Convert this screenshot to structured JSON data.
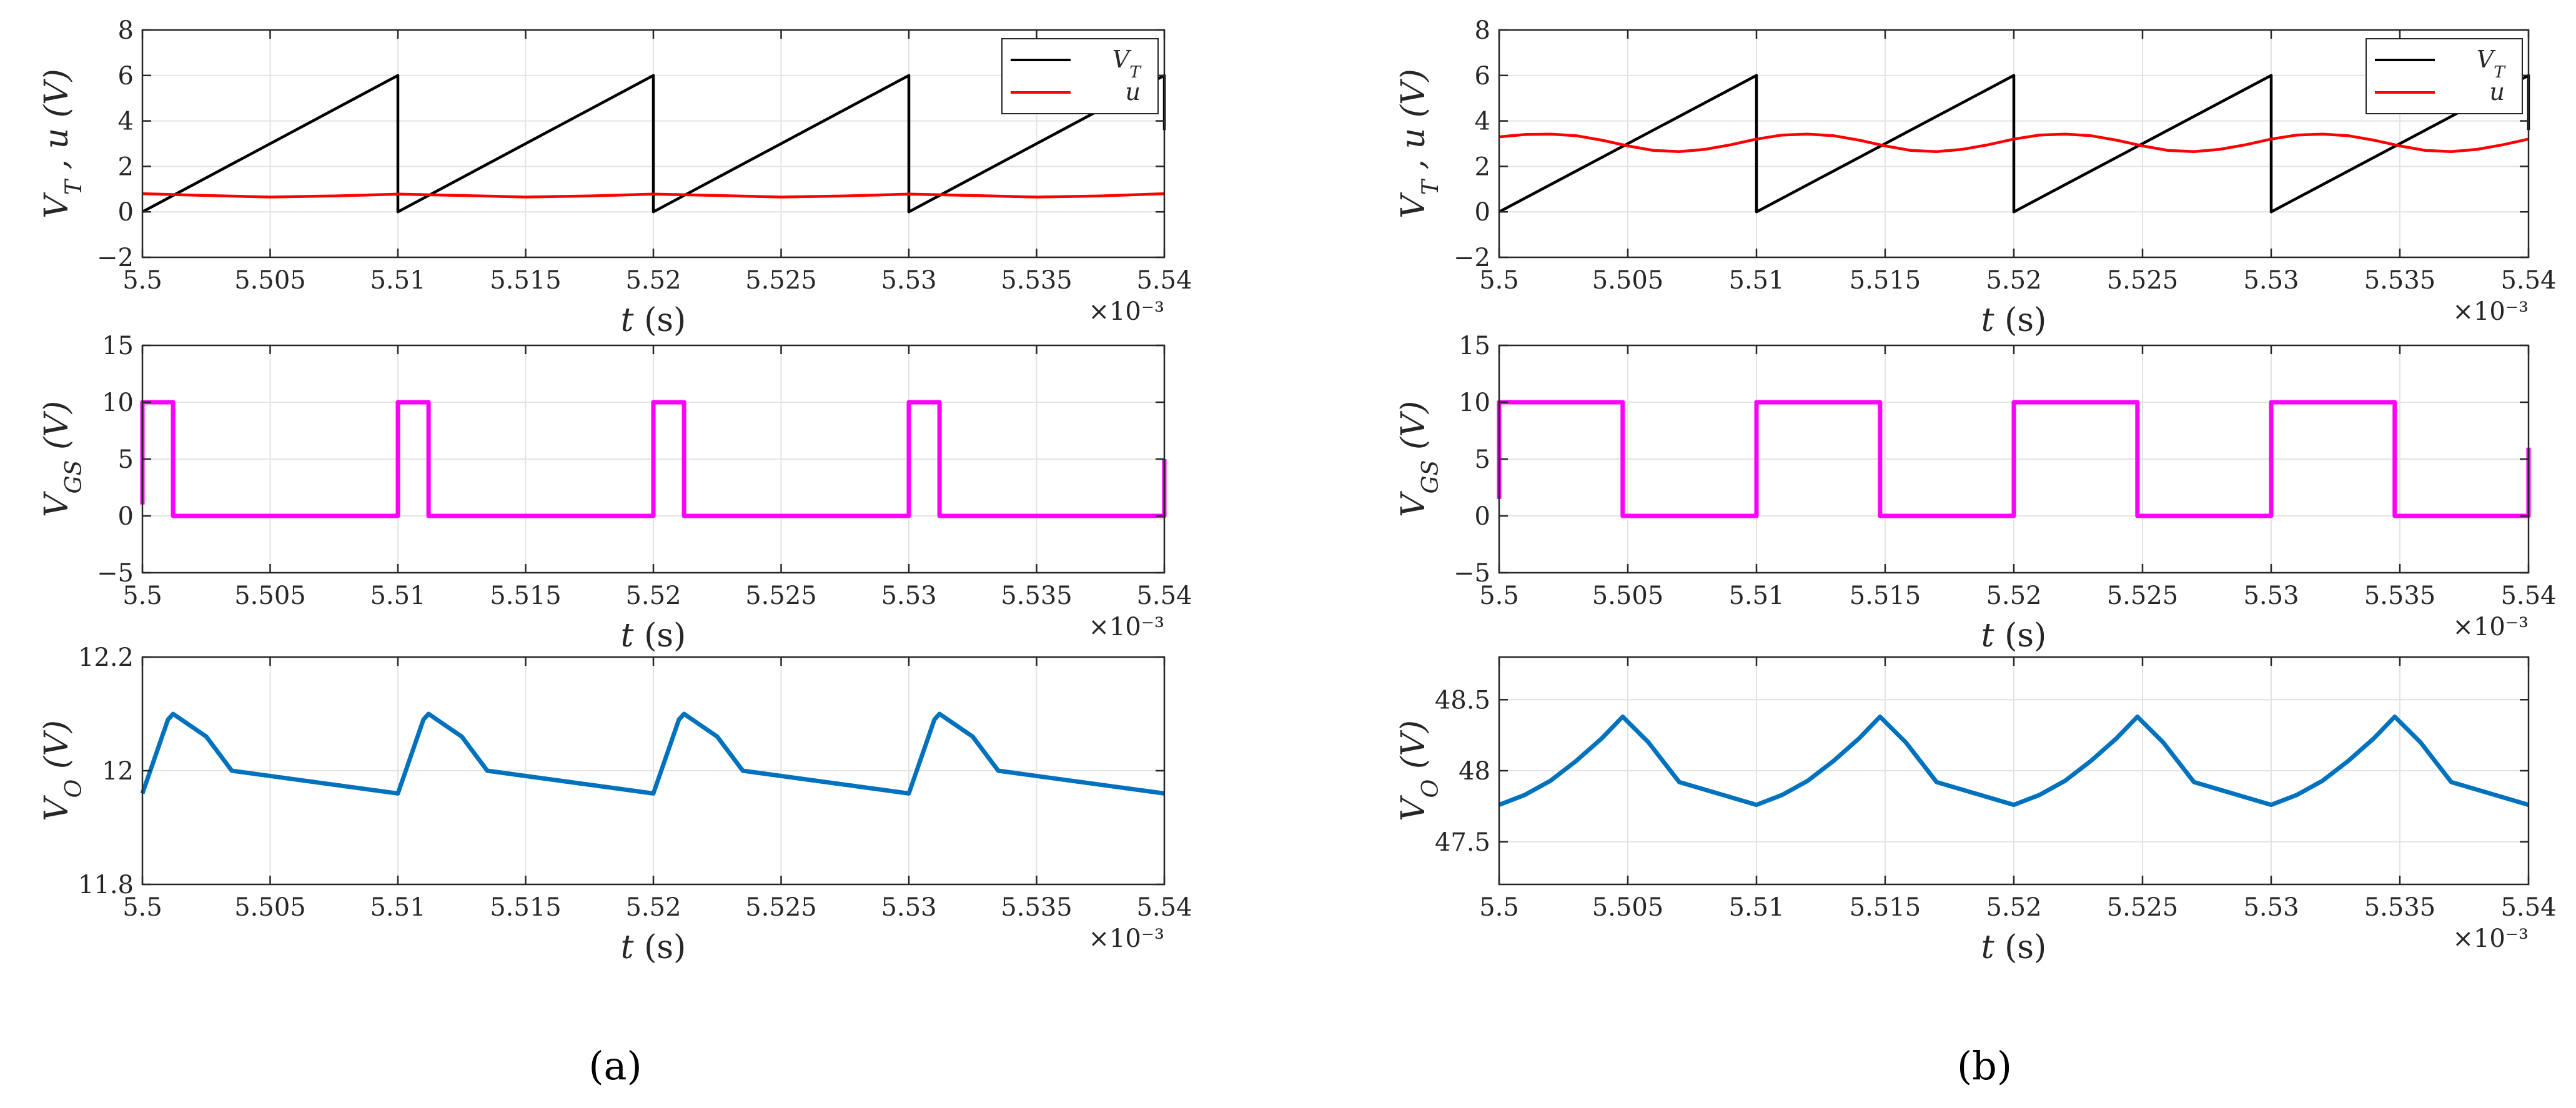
{
  "chart_data": [
    {
      "id": "a1",
      "panel": "a",
      "type": "line",
      "xlabel_italic": "t",
      "xlabel_rest": " (s)",
      "x_exponent": "×10⁻³",
      "ylabel_html": "V_T ,  u (V)",
      "xlim": [
        5.5,
        5.54
      ],
      "ylim": [
        -2,
        8
      ],
      "xticks": [
        5.5,
        5.505,
        5.51,
        5.515,
        5.52,
        5.525,
        5.53,
        5.535,
        5.54
      ],
      "xtick_labels": [
        "5.5",
        "5.505",
        "5.51",
        "5.515",
        "5.52",
        "5.525",
        "5.53",
        "5.535",
        "5.54"
      ],
      "yticks": [
        -2,
        0,
        2,
        4,
        6,
        8
      ],
      "ytick_labels": [
        "−2",
        "0",
        "2",
        "4",
        "6",
        "8"
      ],
      "legend": {
        "position": "top-right",
        "entries": [
          "V_T",
          "u"
        ]
      },
      "series": [
        {
          "name": "V_T",
          "color": "#000000",
          "x": [
            5.5,
            5.51,
            5.51,
            5.52,
            5.52,
            5.53,
            5.53,
            5.54,
            5.54
          ],
          "y": [
            0,
            6,
            0,
            6,
            0,
            6,
            0,
            6,
            3.6
          ]
        },
        {
          "name": "u",
          "color": "#ff0000",
          "x": [
            5.5,
            5.5025,
            5.505,
            5.5075,
            5.51,
            5.5125,
            5.515,
            5.5175,
            5.52,
            5.5225,
            5.525,
            5.5275,
            5.53,
            5.5325,
            5.535,
            5.5375,
            5.54
          ],
          "y": [
            0.8,
            0.72,
            0.65,
            0.7,
            0.78,
            0.72,
            0.65,
            0.7,
            0.78,
            0.72,
            0.65,
            0.7,
            0.78,
            0.72,
            0.65,
            0.7,
            0.8
          ]
        }
      ]
    },
    {
      "id": "a2",
      "panel": "a",
      "type": "line",
      "xlabel_italic": "t",
      "xlabel_rest": " (s)",
      "x_exponent": "×10⁻³",
      "ylabel_html": "V_GS (V)",
      "xlim": [
        5.5,
        5.54
      ],
      "ylim": [
        -5,
        15
      ],
      "xticks": [
        5.5,
        5.505,
        5.51,
        5.515,
        5.52,
        5.525,
        5.53,
        5.535,
        5.54
      ],
      "xtick_labels": [
        "5.5",
        "5.505",
        "5.51",
        "5.515",
        "5.52",
        "5.525",
        "5.53",
        "5.535",
        "5.54"
      ],
      "yticks": [
        -5,
        0,
        5,
        10,
        15
      ],
      "ytick_labels": [
        "−5",
        "0",
        "5",
        "10",
        "15"
      ],
      "series": [
        {
          "name": "V_GS",
          "color": "#ff00ff",
          "x": [
            5.5,
            5.5,
            5.5012,
            5.5012,
            5.51,
            5.51,
            5.5112,
            5.5112,
            5.52,
            5.52,
            5.5212,
            5.5212,
            5.53,
            5.53,
            5.5312,
            5.5312,
            5.54,
            5.54
          ],
          "y": [
            1,
            10,
            10,
            0,
            0,
            10,
            10,
            0,
            0,
            10,
            10,
            0,
            0,
            10,
            10,
            0,
            0,
            5
          ]
        }
      ]
    },
    {
      "id": "a3",
      "panel": "a",
      "type": "line",
      "xlabel_italic": "t",
      "xlabel_rest": " (s)",
      "x_exponent": "×10⁻³",
      "ylabel_html": "V_O (V)",
      "xlim": [
        5.5,
        5.54
      ],
      "ylim": [
        11.8,
        12.2
      ],
      "xticks": [
        5.5,
        5.505,
        5.51,
        5.515,
        5.52,
        5.525,
        5.53,
        5.535,
        5.54
      ],
      "xtick_labels": [
        "5.5",
        "5.505",
        "5.51",
        "5.515",
        "5.52",
        "5.525",
        "5.53",
        "5.535",
        "5.54"
      ],
      "yticks": [
        11.8,
        12,
        12.2
      ],
      "ytick_labels": [
        "11.8",
        "12",
        "12.2"
      ],
      "series": [
        {
          "name": "V_O",
          "color": "#0072bd",
          "x": [
            5.5,
            5.501,
            5.5012,
            5.5025,
            5.5035,
            5.51,
            5.511,
            5.5112,
            5.5125,
            5.5135,
            5.52,
            5.521,
            5.5212,
            5.5225,
            5.5235,
            5.53,
            5.531,
            5.5312,
            5.5325,
            5.5335,
            5.54
          ],
          "y": [
            11.96,
            12.09,
            12.1,
            12.06,
            12.0,
            11.96,
            12.09,
            12.1,
            12.06,
            12.0,
            11.96,
            12.09,
            12.1,
            12.06,
            12.0,
            11.96,
            12.09,
            12.1,
            12.06,
            12.0,
            11.96
          ]
        }
      ]
    },
    {
      "id": "b1",
      "panel": "b",
      "type": "line",
      "xlabel_italic": "t",
      "xlabel_rest": " (s)",
      "x_exponent": "×10⁻³",
      "ylabel_html": "V_T ,  u (V)",
      "xlim": [
        5.5,
        5.54
      ],
      "ylim": [
        -2,
        8
      ],
      "xticks": [
        5.5,
        5.505,
        5.51,
        5.515,
        5.52,
        5.525,
        5.53,
        5.535,
        5.54
      ],
      "xtick_labels": [
        "5.5",
        "5.505",
        "5.51",
        "5.515",
        "5.52",
        "5.525",
        "5.53",
        "5.535",
        "5.54"
      ],
      "yticks": [
        -2,
        0,
        2,
        4,
        6,
        8
      ],
      "ytick_labels": [
        "−2",
        "0",
        "2",
        "4",
        "6",
        "8"
      ],
      "legend": {
        "position": "top-right",
        "entries": [
          "V_T",
          "u"
        ]
      },
      "series": [
        {
          "name": "V_T",
          "color": "#000000",
          "x": [
            5.5,
            5.51,
            5.51,
            5.52,
            5.52,
            5.53,
            5.53,
            5.54,
            5.54
          ],
          "y": [
            0,
            6,
            0,
            6,
            0,
            6,
            0,
            6,
            3.6
          ]
        },
        {
          "name": "u",
          "color": "#ff0000",
          "x": [
            5.5,
            5.501,
            5.502,
            5.503,
            5.504,
            5.505,
            5.506,
            5.507,
            5.508,
            5.509,
            5.51,
            5.511,
            5.512,
            5.513,
            5.514,
            5.515,
            5.516,
            5.517,
            5.518,
            5.519,
            5.52,
            5.521,
            5.522,
            5.523,
            5.524,
            5.525,
            5.526,
            5.527,
            5.528,
            5.529,
            5.53,
            5.531,
            5.532,
            5.533,
            5.534,
            5.535,
            5.536,
            5.537,
            5.538,
            5.539,
            5.54
          ],
          "y": [
            3.3,
            3.4,
            3.42,
            3.35,
            3.15,
            2.9,
            2.7,
            2.65,
            2.75,
            2.95,
            3.2,
            3.38,
            3.42,
            3.35,
            3.15,
            2.9,
            2.7,
            2.65,
            2.75,
            2.95,
            3.2,
            3.38,
            3.42,
            3.35,
            3.15,
            2.9,
            2.7,
            2.65,
            2.75,
            2.95,
            3.2,
            3.38,
            3.42,
            3.35,
            3.15,
            2.9,
            2.7,
            2.65,
            2.75,
            2.95,
            3.2
          ]
        }
      ]
    },
    {
      "id": "b2",
      "panel": "b",
      "type": "line",
      "xlabel_italic": "t",
      "xlabel_rest": " (s)",
      "x_exponent": "×10⁻³",
      "ylabel_html": "V_GS (V)",
      "xlim": [
        5.5,
        5.54
      ],
      "ylim": [
        -5,
        15
      ],
      "xticks": [
        5.5,
        5.505,
        5.51,
        5.515,
        5.52,
        5.525,
        5.53,
        5.535,
        5.54
      ],
      "xtick_labels": [
        "5.5",
        "5.505",
        "5.51",
        "5.515",
        "5.52",
        "5.525",
        "5.53",
        "5.535",
        "5.54"
      ],
      "yticks": [
        -5,
        0,
        5,
        10,
        15
      ],
      "ytick_labels": [
        "−5",
        "0",
        "5",
        "10",
        "15"
      ],
      "series": [
        {
          "name": "V_GS",
          "color": "#ff00ff",
          "x": [
            5.5,
            5.5,
            5.5048,
            5.5048,
            5.51,
            5.51,
            5.5148,
            5.5148,
            5.52,
            5.52,
            5.5248,
            5.5248,
            5.53,
            5.53,
            5.5348,
            5.5348,
            5.54,
            5.54
          ],
          "y": [
            1.5,
            10,
            10,
            0,
            0,
            10,
            10,
            0,
            0,
            10,
            10,
            0,
            0,
            10,
            10,
            0,
            0,
            6
          ]
        }
      ]
    },
    {
      "id": "b3",
      "panel": "b",
      "type": "line",
      "xlabel_italic": "t",
      "xlabel_rest": " (s)",
      "x_exponent": "×10⁻³",
      "ylabel_html": "V_O (V)",
      "xlim": [
        5.5,
        5.54
      ],
      "ylim": [
        47.2,
        48.8
      ],
      "xticks": [
        5.5,
        5.505,
        5.51,
        5.515,
        5.52,
        5.525,
        5.53,
        5.535,
        5.54
      ],
      "xtick_labels": [
        "5.5",
        "5.505",
        "5.51",
        "5.515",
        "5.52",
        "5.525",
        "5.53",
        "5.535",
        "5.54"
      ],
      "yticks": [
        47.5,
        48,
        48.5
      ],
      "ytick_labels": [
        "47.5",
        "48",
        "48.5"
      ],
      "series": [
        {
          "name": "V_O",
          "color": "#0072bd",
          "x": [
            5.5,
            5.501,
            5.502,
            5.503,
            5.504,
            5.5048,
            5.5058,
            5.507,
            5.51,
            5.511,
            5.512,
            5.513,
            5.514,
            5.5148,
            5.5158,
            5.517,
            5.52,
            5.521,
            5.522,
            5.523,
            5.524,
            5.5248,
            5.5258,
            5.527,
            5.53,
            5.531,
            5.532,
            5.533,
            5.534,
            5.5348,
            5.5358,
            5.537,
            5.54
          ],
          "y": [
            47.76,
            47.83,
            47.93,
            48.07,
            48.23,
            48.38,
            48.2,
            47.92,
            47.76,
            47.83,
            47.93,
            48.07,
            48.23,
            48.38,
            48.2,
            47.92,
            47.76,
            47.83,
            47.93,
            48.07,
            48.23,
            48.38,
            48.2,
            47.92,
            47.76,
            47.83,
            47.93,
            48.07,
            48.23,
            48.38,
            48.2,
            47.92,
            47.76
          ]
        }
      ]
    }
  ],
  "panel_labels": {
    "a": "(a)",
    "b": "(b)"
  }
}
